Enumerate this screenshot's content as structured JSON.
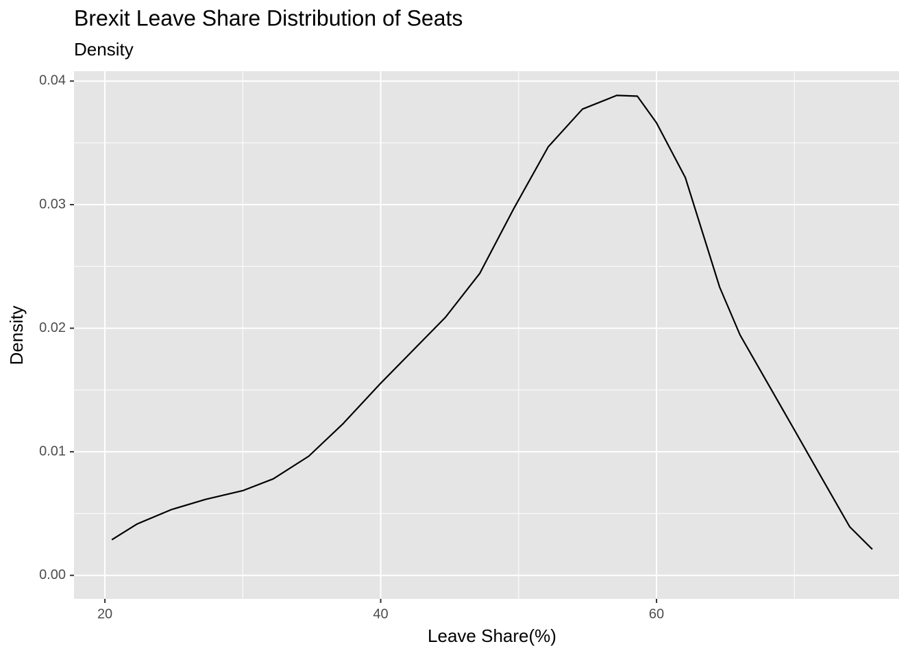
{
  "chart_data": {
    "type": "line",
    "title": "Brexit Leave Share Distribution of Seats",
    "subtitle": "Density",
    "x_label": "Leave Share(%)",
    "y_label": "Density",
    "color": "#000000",
    "x": [
      20.5,
      22.34,
      24.82,
      27.3,
      30.04,
      32.21,
      34.78,
      37.24,
      40.02,
      42.21,
      44.7,
      47.18,
      49.66,
      52.15,
      54.63,
      57.12,
      58.61,
      60.0,
      62.09,
      64.58,
      66.06,
      68.05,
      70.04,
      72.02,
      74.01,
      75.65
    ],
    "values": [
      0.00288,
      0.00416,
      0.00532,
      0.00615,
      0.00687,
      0.00781,
      0.00964,
      0.01224,
      0.01557,
      0.01806,
      0.02089,
      0.02443,
      0.0297,
      0.03468,
      0.03773,
      0.03884,
      0.03878,
      0.03662,
      0.03219,
      0.02332,
      0.01945,
      0.01557,
      0.01169,
      0.00781,
      0.00393,
      0.00211
    ],
    "xlim": [
      17.76,
      77.59
    ],
    "ylim": [
      -0.0019,
      0.0408
    ],
    "xticks": [
      20,
      40,
      60
    ],
    "yticks": [
      {
        "value": 0,
        "label": "0.00"
      },
      {
        "value": 0.01,
        "label": "0.01"
      },
      {
        "value": 0.02,
        "label": "0.02"
      },
      {
        "value": 0.03,
        "label": "0.03"
      },
      {
        "value": 0.04,
        "label": "0.04"
      }
    ],
    "x_minor_grid": [
      30,
      50,
      70
    ],
    "y_minor_grid": [
      0.005,
      0.015,
      0.025,
      0.035
    ],
    "grid": true,
    "panel_color": "#e5e5e5"
  }
}
